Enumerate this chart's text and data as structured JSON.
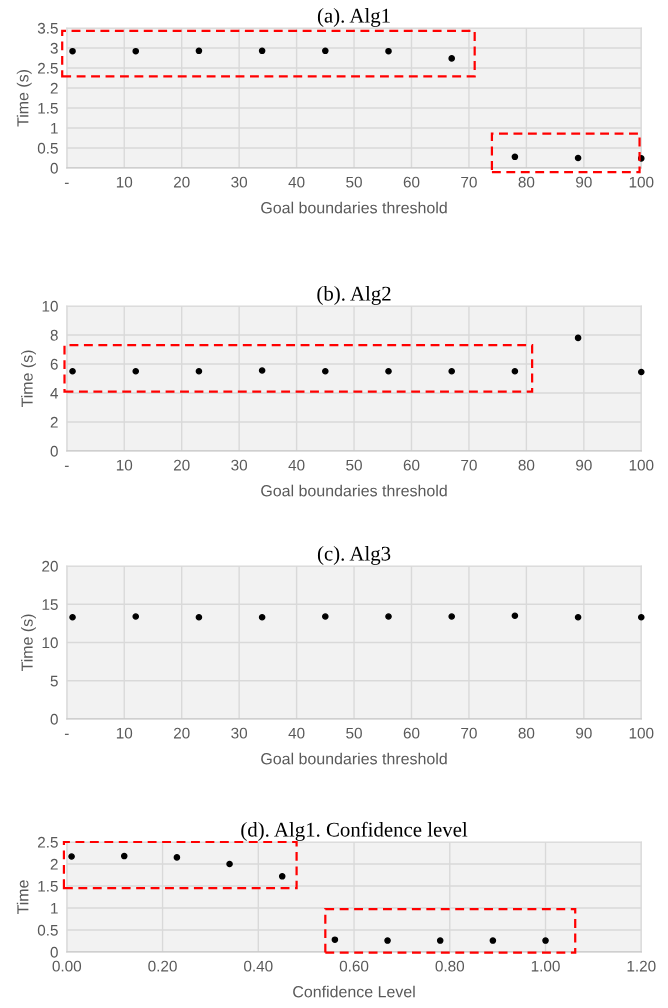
{
  "chart_data": [
    {
      "type": "scatter",
      "title": "(a). Alg1",
      "xlabel": "Goal boundaries threshold",
      "ylabel": "Time (s)",
      "x": [
        1,
        12,
        23,
        34,
        45,
        56,
        67,
        78,
        89,
        100
      ],
      "series": [
        {
          "color": "#000000",
          "values": [
            2.92,
            2.92,
            2.93,
            2.93,
            2.93,
            2.92,
            2.74,
            0.28,
            0.25,
            0.24
          ]
        }
      ],
      "xlim": [
        0,
        100
      ],
      "xticks": [
        {
          "value": 0,
          "label": "-"
        },
        10,
        20,
        30,
        40,
        50,
        60,
        70,
        80,
        90,
        100
      ],
      "ylim": [
        0,
        3.5
      ],
      "yticks": [
        0,
        0.5,
        1,
        1.5,
        2,
        2.5,
        3,
        3.5
      ],
      "grid": true,
      "marker": "circle"
    },
    {
      "type": "scatter",
      "title": "(b). Alg2",
      "xlabel": "Goal boundaries threshold",
      "ylabel": "Time (s)",
      "x": [
        1,
        12,
        23,
        34,
        45,
        56,
        67,
        78,
        89,
        100
      ],
      "series": [
        {
          "color": "#000000",
          "values": [
            5.5,
            5.5,
            5.5,
            5.55,
            5.5,
            5.5,
            5.5,
            5.5,
            7.8,
            5.45
          ]
        }
      ],
      "xlim": [
        0,
        100
      ],
      "xticks": [
        {
          "value": 0,
          "label": "-"
        },
        10,
        20,
        30,
        40,
        50,
        60,
        70,
        80,
        90,
        100
      ],
      "ylim": [
        0,
        10
      ],
      "yticks": [
        0,
        2,
        4,
        6,
        8,
        10
      ],
      "grid": true,
      "marker": "circle"
    },
    {
      "type": "scatter",
      "title": "(c). Alg3",
      "xlabel": "Goal boundaries threshold",
      "ylabel": "Time (s)",
      "x": [
        1,
        12,
        23,
        34,
        45,
        56,
        67,
        78,
        89,
        100
      ],
      "series": [
        {
          "color": "#000000",
          "values": [
            13.3,
            13.4,
            13.3,
            13.3,
            13.4,
            13.4,
            13.4,
            13.5,
            13.3,
            13.3
          ]
        }
      ],
      "xlim": [
        0,
        100
      ],
      "xticks": [
        {
          "value": 0,
          "label": "-"
        },
        10,
        20,
        30,
        40,
        50,
        60,
        70,
        80,
        90,
        100
      ],
      "ylim": [
        0,
        20
      ],
      "yticks": [
        0,
        5,
        10,
        15,
        20
      ],
      "grid": true,
      "marker": "circle"
    },
    {
      "type": "scatter",
      "title": "(d). Alg1. Confidence level",
      "xlabel": "Confidence Level",
      "ylabel": "Time",
      "x": [
        0.01,
        0.12,
        0.23,
        0.34,
        0.45,
        0.56,
        0.67,
        0.78,
        0.89,
        1.0
      ],
      "series": [
        {
          "color": "#000000",
          "values": [
            2.17,
            2.18,
            2.15,
            2.0,
            1.72,
            0.28,
            0.26,
            0.26,
            0.26,
            0.26
          ]
        }
      ],
      "xlim": [
        0,
        1.2
      ],
      "xticks": [
        {
          "value": 0,
          "label": "0.00"
        },
        {
          "value": 0.2,
          "label": "0.20"
        },
        {
          "value": 0.4,
          "label": "0.40"
        },
        {
          "value": 0.6,
          "label": "0.60"
        },
        {
          "value": 0.8,
          "label": "0.80"
        },
        {
          "value": 1.0,
          "label": "1.00"
        },
        {
          "value": 1.2,
          "label": "1.20"
        }
      ],
      "ylim": [
        0,
        2.5
      ],
      "yticks": [
        0,
        0.5,
        1,
        1.5,
        2,
        2.5
      ],
      "grid": true,
      "marker": "circle"
    }
  ]
}
